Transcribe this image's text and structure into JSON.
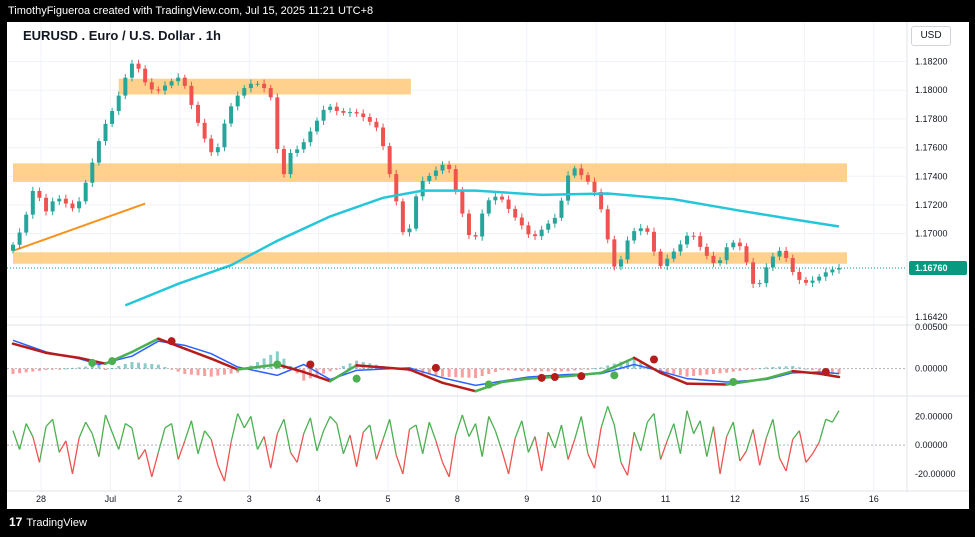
{
  "header": {
    "credit": "TimothyFigueroa created with TradingView.com, Jul 15, 2025 11:21 UTC+8"
  },
  "chart_title": "EURUSD . Euro / U.S. Dollar . 1h",
  "currency_button": "USD",
  "footer": {
    "logo": "17",
    "brand": "TradingView"
  },
  "colors": {
    "up": "#26a69a",
    "down": "#ef5350",
    "zone": "#ffcc80",
    "ma": "#26c6da",
    "trend": "#f7931a",
    "macd_fast": "#2962ff",
    "macd_up": "#4caf50",
    "macd_down": "#b71c1c",
    "osc_up": "#4caf50",
    "osc_down": "#ef5350",
    "last_price_bg": "#089981"
  },
  "chart_data": [
    {
      "type": "candlestick",
      "title": "EURUSD . Euro / U.S. Dollar . 1h",
      "x_tick_labels": [
        "28",
        "Jul",
        "2",
        "3",
        "4",
        "5",
        "8",
        "9",
        "10",
        "11",
        "12",
        "15",
        "16"
      ],
      "y_tick_labels": [
        "1.18200",
        "1.18000",
        "1.17800",
        "1.17600",
        "1.17400",
        "1.17200",
        "1.17000",
        "1.16420"
      ],
      "ylim": [
        1.1637,
        1.1835
      ],
      "last_price": "1.16760",
      "last_price_value": 1.1676,
      "price_path": [
        [
          0,
          1.1688
        ],
        [
          2,
          1.1705
        ],
        [
          4,
          1.1738
        ],
        [
          5,
          1.1712
        ],
        [
          7,
          1.1726
        ],
        [
          10,
          1.1716
        ],
        [
          12,
          1.1742
        ],
        [
          14,
          1.1772
        ],
        [
          16,
          1.179
        ],
        [
          18,
          1.1815
        ],
        [
          19,
          1.1822
        ],
        [
          20,
          1.1808
        ],
        [
          22,
          1.1798
        ],
        [
          24,
          1.1805
        ],
        [
          26,
          1.181
        ],
        [
          27,
          1.1796
        ],
        [
          29,
          1.1771
        ],
        [
          31,
          1.1752
        ],
        [
          33,
          1.1785
        ],
        [
          35,
          1.18
        ],
        [
          37,
          1.1806
        ],
        [
          39,
          1.18
        ],
        [
          40,
          1.179
        ],
        [
          41,
          1.1728
        ],
        [
          42,
          1.1755
        ],
        [
          44,
          1.176
        ],
        [
          46,
          1.1775
        ],
        [
          48,
          1.179
        ],
        [
          50,
          1.1784
        ],
        [
          52,
          1.1785
        ],
        [
          54,
          1.178
        ],
        [
          56,
          1.1772
        ],
        [
          57,
          1.175
        ],
        [
          58,
          1.1733
        ],
        [
          59,
          1.1712
        ],
        [
          60,
          1.169
        ],
        [
          61,
          1.1717
        ],
        [
          62,
          1.1735
        ],
        [
          64,
          1.1742
        ],
        [
          66,
          1.175
        ],
        [
          67,
          1.174
        ],
        [
          68,
          1.172
        ],
        [
          69,
          1.1708
        ],
        [
          70,
          1.169
        ],
        [
          72,
          1.1722
        ],
        [
          74,
          1.1727
        ],
        [
          76,
          1.1714
        ],
        [
          78,
          1.1703
        ],
        [
          79,
          1.1696
        ],
        [
          81,
          1.1705
        ],
        [
          83,
          1.1713
        ],
        [
          84,
          1.1733
        ],
        [
          85,
          1.1748
        ],
        [
          86,
          1.1743
        ],
        [
          88,
          1.1734
        ],
        [
          89,
          1.1724
        ],
        [
          90,
          1.171
        ],
        [
          91,
          1.1682
        ],
        [
          92,
          1.1672
        ],
        [
          93,
          1.1692
        ],
        [
          95,
          1.1705
        ],
        [
          97,
          1.17
        ],
        [
          98,
          1.1675
        ],
        [
          100,
          1.1685
        ],
        [
          102,
          1.1695
        ],
        [
          103,
          1.1702
        ],
        [
          105,
          1.1687
        ],
        [
          107,
          1.1677
        ],
        [
          109,
          1.1695
        ],
        [
          111,
          1.169
        ],
        [
          112,
          1.167
        ],
        [
          113,
          1.166
        ],
        [
          115,
          1.1682
        ],
        [
          117,
          1.169
        ],
        [
          118,
          1.1676
        ],
        [
          120,
          1.1665
        ],
        [
          122,
          1.1668
        ],
        [
          123,
          1.1672
        ],
        [
          125,
          1.1676
        ]
      ],
      "horizontal_zones": [
        {
          "from": 1.1797,
          "to": 1.1808,
          "x_start": 16,
          "x_end": 59
        },
        {
          "from": 1.1736,
          "to": 1.1749,
          "x_start": 0,
          "x_end": 125
        },
        {
          "from": 1.1679,
          "to": 1.1687,
          "x_start": 0,
          "x_end": 125
        }
      ],
      "trend_line": [
        [
          0,
          1.1688
        ],
        [
          20,
          1.1721
        ]
      ],
      "moving_average": [
        [
          17,
          1.165
        ],
        [
          25,
          1.1665
        ],
        [
          33,
          1.1678
        ],
        [
          40,
          1.1695
        ],
        [
          48,
          1.1712
        ],
        [
          56,
          1.1725
        ],
        [
          62,
          1.173
        ],
        [
          70,
          1.173
        ],
        [
          80,
          1.1727
        ],
        [
          90,
          1.1728
        ],
        [
          100,
          1.1724
        ],
        [
          110,
          1.1716
        ],
        [
          118,
          1.171
        ],
        [
          125,
          1.1705
        ]
      ]
    },
    {
      "type": "line",
      "title": "",
      "y_tick_labels": [
        "0.00500",
        "0.00000"
      ],
      "ylim": [
        -0.0028,
        0.005
      ],
      "series": [
        {
          "values_path": [
            [
              0,
              0.0034
            ],
            [
              5,
              0.002
            ],
            [
              10,
              0.0012
            ],
            [
              13,
              0.0005
            ],
            [
              18,
              0.0015
            ],
            [
              22,
              0.0033
            ],
            [
              26,
              0.0028
            ],
            [
              30,
              0.0018
            ],
            [
              34,
              0.0002
            ],
            [
              40,
              -0.0008
            ],
            [
              44,
              0.0005
            ],
            [
              48,
              -0.0013
            ],
            [
              52,
              -0.0002
            ],
            [
              60,
              0.0001
            ],
            [
              65,
              -0.0011
            ],
            [
              70,
              -0.002
            ],
            [
              74,
              -0.0015
            ],
            [
              78,
              -0.001
            ],
            [
              84,
              -0.0007
            ],
            [
              89,
              -0.0006
            ],
            [
              94,
              0.0005
            ],
            [
              98,
              -0.0003
            ],
            [
              102,
              -0.0012
            ],
            [
              108,
              -0.0016
            ],
            [
              114,
              -0.0013
            ],
            [
              118,
              -0.0005
            ],
            [
              122,
              -0.0004
            ],
            [
              125,
              -0.0006
            ]
          ]
        },
        {
          "values_path": [
            [
              0,
              0.003
            ],
            [
              5,
              0.0019
            ],
            [
              10,
              0.0013
            ],
            [
              14,
              0.0006
            ],
            [
              18,
              0.002
            ],
            [
              22,
              0.0036
            ],
            [
              26,
              0.0024
            ],
            [
              30,
              0.0012
            ],
            [
              34,
              -0.0001
            ],
            [
              40,
              0.0005
            ],
            [
              44,
              -0.0004
            ],
            [
              48,
              -0.0015
            ],
            [
              52,
              0.0004
            ],
            [
              60,
              -0.0001
            ],
            [
              65,
              -0.0017
            ],
            [
              70,
              -0.0027
            ],
            [
              74,
              -0.0016
            ],
            [
              78,
              -0.0012
            ],
            [
              84,
              -0.0009
            ],
            [
              89,
              -0.0005
            ],
            [
              94,
              0.0013
            ],
            [
              98,
              -0.0005
            ],
            [
              102,
              -0.0018
            ],
            [
              108,
              -0.0019
            ],
            [
              114,
              -0.0012
            ],
            [
              118,
              -0.0003
            ],
            [
              122,
              -0.0006
            ],
            [
              125,
              -0.001
            ]
          ]
        }
      ],
      "cross_points": [
        [
          12,
          0.0007,
          "up"
        ],
        [
          15,
          0.0009,
          "up"
        ],
        [
          24,
          0.0033,
          "down"
        ],
        [
          40,
          0.0005,
          "up"
        ],
        [
          45,
          0.0005,
          "down"
        ],
        [
          52,
          -0.0012,
          "up"
        ],
        [
          64,
          0.0001,
          "down"
        ],
        [
          72,
          -0.0019,
          "up"
        ],
        [
          80,
          -0.0011,
          "down"
        ],
        [
          82,
          -0.001,
          "down"
        ],
        [
          86,
          -0.0009,
          "down"
        ],
        [
          91,
          -0.0008,
          "up"
        ],
        [
          97,
          0.0011,
          "down"
        ],
        [
          109,
          -0.0016,
          "up"
        ],
        [
          123,
          -0.0004,
          "down"
        ]
      ]
    },
    {
      "type": "line",
      "title": "",
      "y_tick_labels": [
        "20.00000",
        "0.00000",
        "-20.00000"
      ],
      "ylim": [
        -27,
        30
      ],
      "zero_line": 0,
      "values_path": [
        [
          0,
          10
        ],
        [
          1,
          -3
        ],
        [
          2,
          15
        ],
        [
          3,
          6
        ],
        [
          4,
          -12
        ],
        [
          5,
          13
        ],
        [
          6,
          18
        ],
        [
          7,
          -5
        ],
        [
          8,
          3
        ],
        [
          9,
          -20
        ],
        [
          10,
          5
        ],
        [
          11,
          16
        ],
        [
          12,
          8
        ],
        [
          13,
          -8
        ],
        [
          14,
          21
        ],
        [
          15,
          9
        ],
        [
          16,
          -3
        ],
        [
          17,
          15
        ],
        [
          18,
          12
        ],
        [
          19,
          -10
        ],
        [
          20,
          -3
        ],
        [
          21,
          -22
        ],
        [
          22,
          -5
        ],
        [
          23,
          12
        ],
        [
          24,
          15
        ],
        [
          25,
          -10
        ],
        [
          26,
          3
        ],
        [
          27,
          17
        ],
        [
          28,
          -6
        ],
        [
          29,
          10
        ],
        [
          30,
          4
        ],
        [
          31,
          -14
        ],
        [
          32,
          -25
        ],
        [
          33,
          2
        ],
        [
          34,
          22
        ],
        [
          35,
          12
        ],
        [
          36,
          20
        ],
        [
          37,
          -3
        ],
        [
          38,
          6
        ],
        [
          39,
          -16
        ],
        [
          40,
          8
        ],
        [
          41,
          18
        ],
        [
          42,
          -5
        ],
        [
          43,
          -12
        ],
        [
          44,
          8
        ],
        [
          45,
          19
        ],
        [
          46,
          -4
        ],
        [
          47,
          10
        ],
        [
          48,
          20
        ],
        [
          49,
          15
        ],
        [
          50,
          -6
        ],
        [
          51,
          7
        ],
        [
          52,
          -15
        ],
        [
          53,
          9
        ],
        [
          54,
          14
        ],
        [
          55,
          -10
        ],
        [
          56,
          4
        ],
        [
          57,
          18
        ],
        [
          58,
          -7
        ],
        [
          59,
          -20
        ],
        [
          60,
          11
        ],
        [
          61,
          14
        ],
        [
          62,
          -6
        ],
        [
          63,
          16
        ],
        [
          64,
          3
        ],
        [
          65,
          -12
        ],
        [
          66,
          -22
        ],
        [
          67,
          7
        ],
        [
          68,
          21
        ],
        [
          69,
          6
        ],
        [
          70,
          15
        ],
        [
          71,
          -8
        ],
        [
          72,
          20
        ],
        [
          73,
          10
        ],
        [
          74,
          -4
        ],
        [
          75,
          -20
        ],
        [
          76,
          5
        ],
        [
          77,
          17
        ],
        [
          78,
          -5
        ],
        [
          79,
          6
        ],
        [
          80,
          -18
        ],
        [
          81,
          9
        ],
        [
          82,
          -2
        ],
        [
          83,
          14
        ],
        [
          84,
          -10
        ],
        [
          85,
          4
        ],
        [
          86,
          20
        ],
        [
          87,
          -6
        ],
        [
          88,
          -16
        ],
        [
          89,
          12
        ],
        [
          90,
          27
        ],
        [
          91,
          14
        ],
        [
          92,
          -12
        ],
        [
          93,
          -21
        ],
        [
          94,
          9
        ],
        [
          95,
          -4
        ],
        [
          96,
          16
        ],
        [
          97,
          22
        ],
        [
          98,
          -10
        ],
        [
          99,
          3
        ],
        [
          100,
          15
        ],
        [
          101,
          -6
        ],
        [
          102,
          24
        ],
        [
          103,
          8
        ],
        [
          104,
          17
        ],
        [
          105,
          -8
        ],
        [
          106,
          13
        ],
        [
          107,
          -20
        ],
        [
          108,
          6
        ],
        [
          109,
          16
        ],
        [
          110,
          -11
        ],
        [
          111,
          -4
        ],
        [
          112,
          11
        ],
        [
          113,
          -14
        ],
        [
          114,
          5
        ],
        [
          115,
          18
        ],
        [
          116,
          -9
        ],
        [
          117,
          -18
        ],
        [
          118,
          4
        ],
        [
          119,
          10
        ],
        [
          120,
          -12
        ],
        [
          121,
          -6
        ],
        [
          122,
          2
        ],
        [
          123,
          18
        ],
        [
          124,
          16
        ],
        [
          125,
          24
        ]
      ]
    }
  ]
}
